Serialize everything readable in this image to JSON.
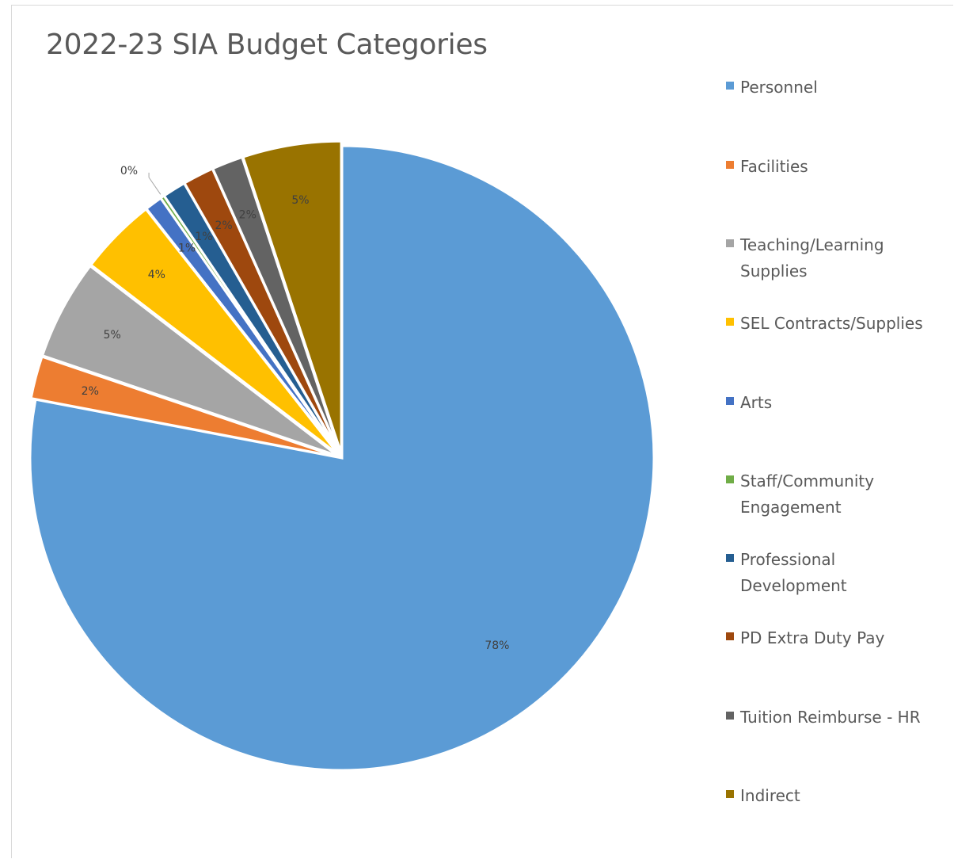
{
  "chart_data": {
    "type": "pie",
    "title": "2022-23 SIA Budget Categories",
    "legend_position": "right",
    "start_angle_deg": 0,
    "direction": "clockwise",
    "slices": [
      {
        "label": "Personnel",
        "value": 78,
        "data_label": "78%",
        "color": "#5b9bd5"
      },
      {
        "label": "Facilities",
        "value": 2.2,
        "data_label": "2%",
        "color": "#ed7d31"
      },
      {
        "label": "Teaching/Learning Supplies",
        "value": 5.2,
        "data_label": "5%",
        "color": "#a5a5a5"
      },
      {
        "label": "SEL Contracts/Supplies",
        "value": 4,
        "data_label": "4%",
        "color": "#ffc000"
      },
      {
        "label": "Arts",
        "value": 0.9,
        "data_label": "1%",
        "color": "#4472c4"
      },
      {
        "label": "Staff/Community Engagement",
        "value": 0.2,
        "data_label": "0%",
        "color": "#70ad47"
      },
      {
        "label": "Professional Development",
        "value": 1.2,
        "data_label": "1%",
        "color": "#255e91"
      },
      {
        "label": "PD Extra Duty Pay",
        "value": 1.6,
        "data_label": "2%",
        "color": "#9e480e"
      },
      {
        "label": "Tuition Reimburse - HR",
        "value": 1.6,
        "data_label": "2%",
        "color": "#636363"
      },
      {
        "label": "Indirect",
        "value": 5.1,
        "data_label": "5%",
        "color": "#997300"
      }
    ]
  }
}
